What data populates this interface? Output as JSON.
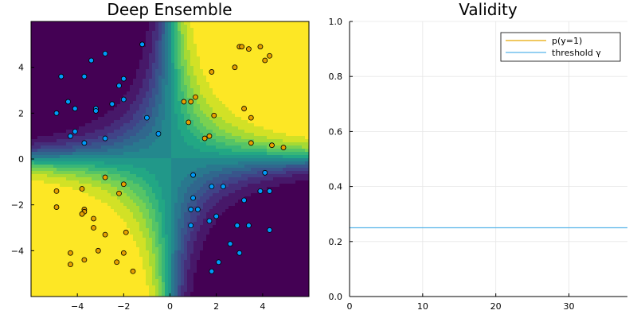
{
  "chart_data": [
    {
      "type": "contour",
      "title": "Deep Ensemble",
      "xlabel": "",
      "ylabel": "",
      "xlim": [
        -6,
        6
      ],
      "ylim": [
        -6,
        6
      ],
      "xticks": [
        -4,
        -2,
        0,
        2,
        4
      ],
      "yticks": [
        -4,
        -2,
        0,
        2,
        4
      ],
      "xtick_labels": [
        "−4",
        "−2",
        "0",
        "2",
        "4"
      ],
      "ytick_labels": [
        "−4",
        "−2",
        "0",
        "2",
        "4"
      ],
      "colormap": "viridis",
      "grid": false,
      "series": [
        {
          "color": "#e69f00",
          "points": [
            [
              3.0,
              4.9
            ],
            [
              3.1,
              4.9
            ],
            [
              3.4,
              4.8
            ],
            [
              3.9,
              4.9
            ],
            [
              4.3,
              4.5
            ],
            [
              4.1,
              4.3
            ],
            [
              2.8,
              4.0
            ],
            [
              1.8,
              3.8
            ],
            [
              1.1,
              2.7
            ],
            [
              0.9,
              2.5
            ],
            [
              0.6,
              2.5
            ],
            [
              3.2,
              2.2
            ],
            [
              3.5,
              1.8
            ],
            [
              1.9,
              1.9
            ],
            [
              0.8,
              1.6
            ],
            [
              1.7,
              1.0
            ],
            [
              1.5,
              0.9
            ],
            [
              3.5,
              0.7
            ],
            [
              4.4,
              0.6
            ],
            [
              4.9,
              0.5
            ],
            [
              -2.8,
              -0.8
            ],
            [
              -2.0,
              -1.1
            ],
            [
              -2.2,
              -1.5
            ],
            [
              -3.8,
              -1.3
            ],
            [
              -4.9,
              -1.4
            ],
            [
              -4.9,
              -2.1
            ],
            [
              -3.7,
              -2.2
            ],
            [
              -3.7,
              -2.3
            ],
            [
              -3.8,
              -2.4
            ],
            [
              -3.3,
              -2.6
            ],
            [
              -3.3,
              -3.0
            ],
            [
              -1.9,
              -3.2
            ],
            [
              -2.8,
              -3.3
            ],
            [
              -4.3,
              -4.1
            ],
            [
              -3.1,
              -4.0
            ],
            [
              -2.0,
              -4.1
            ],
            [
              -3.7,
              -4.4
            ],
            [
              -4.3,
              -4.6
            ],
            [
              -2.3,
              -4.5
            ],
            [
              -1.6,
              -4.9
            ]
          ]
        },
        {
          "color": "#009af9",
          "points": [
            [
              -1.2,
              5.0
            ],
            [
              -2.8,
              4.6
            ],
            [
              -3.4,
              4.3
            ],
            [
              -4.7,
              3.6
            ],
            [
              -3.7,
              3.6
            ],
            [
              -2.0,
              3.5
            ],
            [
              -2.2,
              3.2
            ],
            [
              -2.0,
              2.6
            ],
            [
              -4.4,
              2.5
            ],
            [
              -2.5,
              2.4
            ],
            [
              -4.1,
              2.2
            ],
            [
              -3.2,
              2.2
            ],
            [
              -3.2,
              2.1
            ],
            [
              -4.9,
              2.0
            ],
            [
              -1.0,
              1.8
            ],
            [
              -4.1,
              1.2
            ],
            [
              -0.5,
              1.1
            ],
            [
              -4.3,
              1.0
            ],
            [
              -2.8,
              0.9
            ],
            [
              -3.7,
              0.7
            ],
            [
              4.1,
              -0.6
            ],
            [
              1.0,
              -0.7
            ],
            [
              1.8,
              -1.2
            ],
            [
              2.3,
              -1.2
            ],
            [
              3.9,
              -1.4
            ],
            [
              4.3,
              -1.4
            ],
            [
              1.0,
              -1.7
            ],
            [
              3.2,
              -1.8
            ],
            [
              0.9,
              -2.2
            ],
            [
              1.2,
              -2.2
            ],
            [
              2.0,
              -2.5
            ],
            [
              1.7,
              -2.7
            ],
            [
              0.9,
              -2.9
            ],
            [
              2.9,
              -2.9
            ],
            [
              3.4,
              -2.9
            ],
            [
              4.3,
              -3.1
            ],
            [
              2.6,
              -3.7
            ],
            [
              3.0,
              -4.1
            ],
            [
              2.1,
              -4.5
            ],
            [
              1.8,
              -4.9
            ]
          ]
        }
      ]
    },
    {
      "type": "line",
      "title": "Validity",
      "xlabel": "",
      "ylabel": "",
      "xlim": [
        0,
        38
      ],
      "ylim": [
        0,
        1
      ],
      "xticks": [
        0,
        10,
        20,
        30
      ],
      "yticks": [
        0.0,
        0.2,
        0.4,
        0.6,
        0.8,
        1.0
      ],
      "xtick_labels": [
        "0",
        "10",
        "20",
        "30"
      ],
      "ytick_labels": [
        "0.0",
        "0.2",
        "0.4",
        "0.6",
        "0.8",
        "1.0"
      ],
      "grid": true,
      "legend_position": "top-right",
      "series": [
        {
          "name": "p(y=1)",
          "color": "#e6a800",
          "x": [],
          "y": []
        },
        {
          "name": "threshold γ",
          "color": "#56b4e9",
          "x": [
            0,
            38
          ],
          "y": [
            0.25,
            0.25
          ]
        }
      ]
    }
  ]
}
